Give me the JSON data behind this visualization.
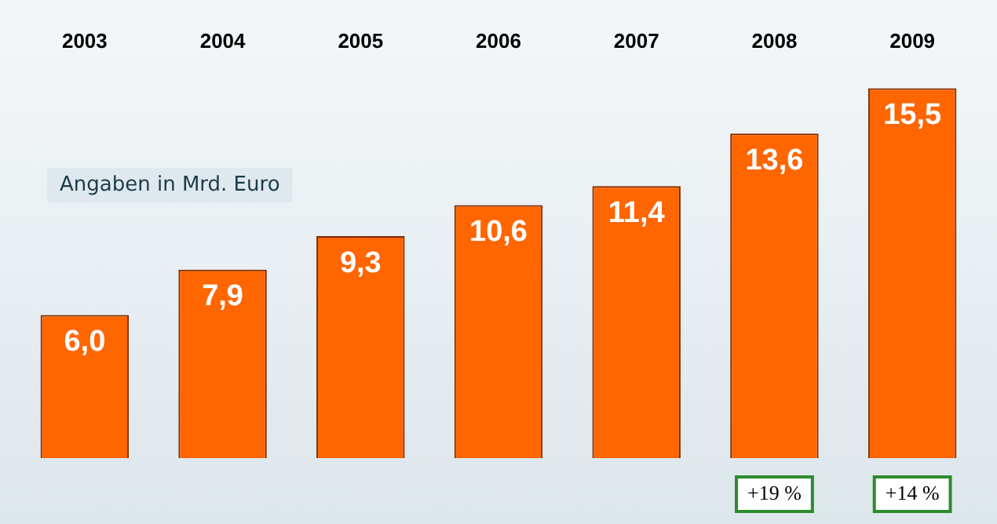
{
  "chart_data": {
    "type": "bar",
    "categories": [
      "2003",
      "2004",
      "2005",
      "2006",
      "2007",
      "2008",
      "2009"
    ],
    "values": [
      6.0,
      7.9,
      9.3,
      10.6,
      11.4,
      13.6,
      15.5
    ],
    "value_labels": [
      "6,0",
      "7,9",
      "9,3",
      "10,6",
      "11,4",
      "13,6",
      "15,5"
    ],
    "color": "#ff6600",
    "annotations": [
      "Angaben in Mrd. Euro",
      "+19 %",
      "+14 %"
    ],
    "grid": false,
    "legend": false
  }
}
